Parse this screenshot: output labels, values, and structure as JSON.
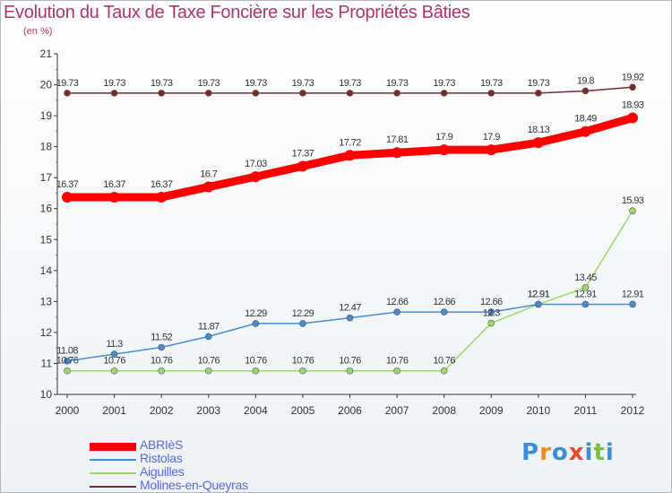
{
  "title": "Evolution du Taux de Taxe Foncière sur les Propriétés Bâties",
  "unit": "(en %)",
  "chart_data": {
    "type": "line",
    "title": "Evolution du Taux de Taxe Foncière sur les Propriétés Bâties",
    "ylabel": "(en %)",
    "xlabel": "",
    "ylim": [
      10,
      21
    ],
    "yticks": [
      "10",
      "11",
      "12",
      "13",
      "14",
      "15",
      "16",
      "17",
      "18",
      "19",
      "20",
      "21"
    ],
    "x": [
      "2000",
      "2001",
      "2002",
      "2003",
      "2004",
      "2005",
      "2006",
      "2007",
      "2008",
      "2009",
      "2010",
      "2011",
      "2012"
    ],
    "grid": false,
    "legend": "bottom-left",
    "series": [
      {
        "name": "ABRIèS",
        "color": "#ff0000",
        "values": [
          16.37,
          16.37,
          16.37,
          16.7,
          17.03,
          17.37,
          17.72,
          17.81,
          17.9,
          17.9,
          18.13,
          18.49,
          18.93
        ],
        "labels": [
          "16.37",
          "16.37",
          "16.37",
          "16.7",
          "17.03",
          "17.37",
          "17.72",
          "17.81",
          "17.9",
          "17.9",
          "18.13",
          "18.49",
          "18.93"
        ]
      },
      {
        "name": "Ristolas",
        "color": "#4a8ccf",
        "values": [
          11.08,
          11.3,
          11.52,
          11.87,
          12.29,
          12.29,
          12.47,
          12.66,
          12.66,
          12.66,
          12.91,
          12.91,
          12.91
        ],
        "labels": [
          "11.08",
          "11.3",
          "11.52",
          "11.87",
          "12.29",
          "12.29",
          "12.47",
          "12.66",
          "12.66",
          "12.66",
          "12.91",
          "12.91",
          "12.91"
        ]
      },
      {
        "name": "Aiguilles",
        "color": "#9ad86a",
        "values": [
          10.76,
          10.76,
          10.76,
          10.76,
          10.76,
          10.76,
          10.76,
          10.76,
          10.76,
          12.3,
          12.91,
          13.45,
          15.93
        ],
        "labels": [
          "10.76",
          "10.76",
          "10.76",
          "10.76",
          "10.76",
          "10.76",
          "10.76",
          "10.76",
          "10.76",
          "12.3",
          "12.91",
          "13.45",
          "15.93"
        ]
      },
      {
        "name": "Molines-en-Queyras",
        "color": "#7a2a2a",
        "values": [
          19.73,
          19.73,
          19.73,
          19.73,
          19.73,
          19.73,
          19.73,
          19.73,
          19.73,
          19.73,
          19.73,
          19.8,
          19.92
        ],
        "labels": [
          "19.73",
          "19.73",
          "19.73",
          "19.73",
          "19.73",
          "19.73",
          "19.73",
          "19.73",
          "19.73",
          "19.73",
          "19.73",
          "19.8",
          "19.92"
        ]
      }
    ]
  },
  "logo": {
    "letters": [
      "P",
      "r",
      "o",
      "x",
      "i",
      "t",
      "i"
    ],
    "colors": [
      "#3a8fd8",
      "#f08a24",
      "#3a8fd8",
      "#e84a2a",
      "#3a8fd8",
      "#7cc043",
      "#3a8fd8"
    ]
  }
}
